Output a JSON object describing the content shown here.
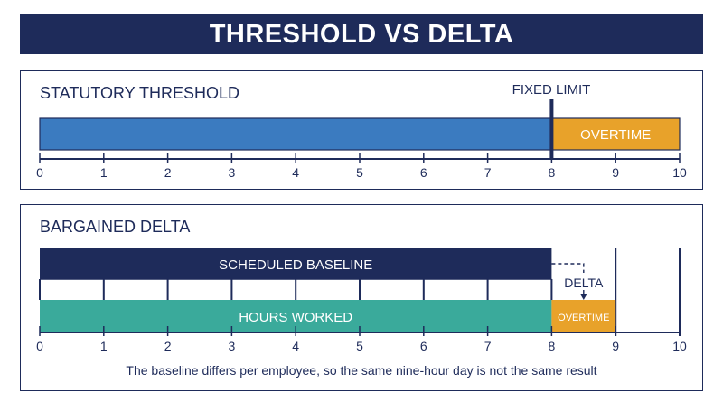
{
  "title": "THRESHOLD VS DELTA",
  "axis_ticks": [
    "0",
    "1",
    "2",
    "3",
    "4",
    "5",
    "6",
    "7",
    "8",
    "9",
    "10"
  ],
  "colors": {
    "navy": "#1e2b5a",
    "blue": "#3b7bc0",
    "orange": "#e8a22a",
    "teal": "#3aaa9b"
  },
  "statutory": {
    "heading": "STATUTORY THRESHOLD",
    "fixed_limit_label": "FIXED LIMIT",
    "fixed_limit_value": 8,
    "regular_range": [
      0,
      8
    ],
    "overtime_range": [
      8,
      10
    ],
    "overtime_label": "OVERTIME"
  },
  "bargained": {
    "heading": "BARGAINED DELTA",
    "baseline_label": "SCHEDULED BASELINE",
    "baseline_range": [
      0,
      8
    ],
    "worked_label": "HOURS WORKED",
    "worked_range": [
      0,
      8
    ],
    "overtime_range": [
      8,
      9
    ],
    "overtime_label": "OVERTIME",
    "delta_label": "DELTA",
    "caption": "The baseline differs per employee, so the same nine-hour day is not the same result"
  }
}
